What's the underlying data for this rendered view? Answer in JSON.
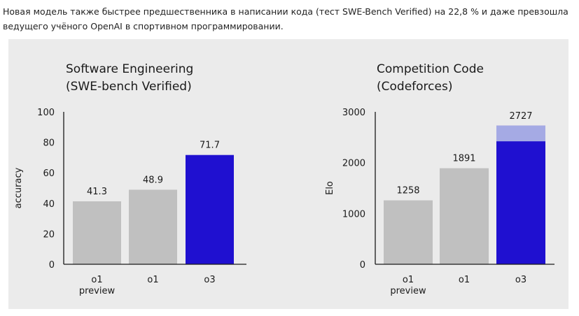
{
  "intro_text": "Новая модель также быстрее предшественника в написании кода (тест SWE-Bench Verified) на 22,8 % и даже превзошла ведущего учёного OpenAI в спортивном программировании.",
  "colors": {
    "grey": "#c0c0c0",
    "blue": "#1f10d0",
    "light_blue": "#a5aae4",
    "panel": "#ebebeb"
  },
  "chart_data": [
    {
      "type": "bar",
      "title": [
        "Software Engineering",
        "(SWE-bench Verified)"
      ],
      "xlabel": "",
      "ylabel": "accuracy",
      "ylim": [
        0,
        100
      ],
      "yticks": [
        0,
        20,
        40,
        60,
        80,
        100
      ],
      "categories": [
        [
          "o1",
          "preview"
        ],
        [
          "o1"
        ],
        [
          "o3"
        ]
      ],
      "values": [
        41.3,
        48.9,
        71.7
      ],
      "value_labels": [
        "41.3",
        "48.9",
        "71.7"
      ],
      "bar_colors": [
        "grey",
        "grey",
        "blue"
      ]
    },
    {
      "type": "bar",
      "title": [
        "Competition Code",
        "(Codeforces)"
      ],
      "xlabel": "",
      "ylabel": "Elo",
      "ylim": [
        0,
        3000
      ],
      "yticks": [
        0,
        1000,
        2000,
        3000
      ],
      "categories": [
        [
          "o1",
          "preview"
        ],
        [
          "o1"
        ],
        [
          "o3"
        ]
      ],
      "values": [
        1258,
        1891,
        2727
      ],
      "value_labels": [
        "1258",
        "1891",
        "2727"
      ],
      "bar_colors": [
        "grey",
        "grey",
        "blue"
      ],
      "stacked_top": [
        null,
        null,
        {
          "base": 2420,
          "top": 2727,
          "color": "light_blue"
        }
      ]
    }
  ]
}
